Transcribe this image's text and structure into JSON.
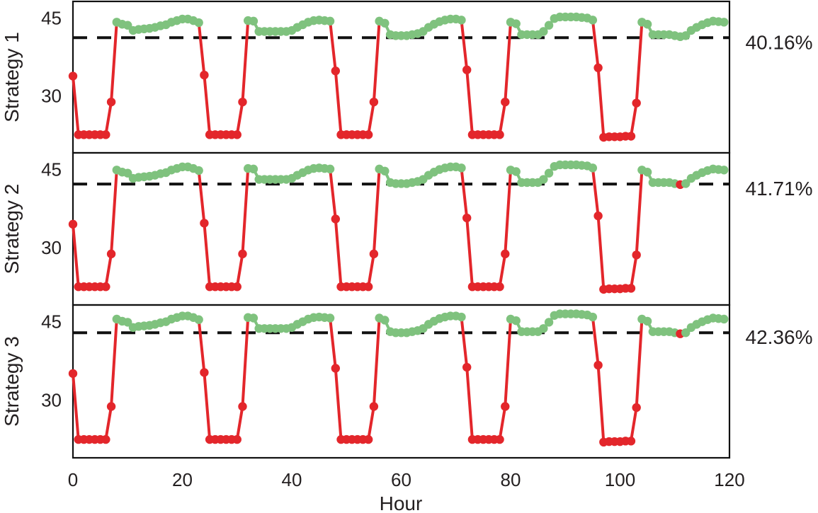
{
  "chart_data": {
    "type": "line",
    "xlabel": "Hour",
    "xlim": [
      0,
      120
    ],
    "x_ticks": [
      0,
      20,
      40,
      60,
      80,
      100,
      120
    ],
    "ylim": [
      19,
      48.2
    ],
    "y_ticks": [
      30,
      45
    ],
    "color_above": "#7fc27e",
    "color_below": "#e3262b",
    "threshold_color": "#111111",
    "panels": [
      {
        "ylabel": "Strategy 1",
        "threshold": 41.2,
        "annotation": "40.16%",
        "offset": 0
      },
      {
        "ylabel": "Strategy 2",
        "threshold": 42.2,
        "annotation": "41.71%",
        "offset": 0.7
      },
      {
        "ylabel": "Strategy 3",
        "threshold": 42.9,
        "annotation": "42.36%",
        "offset": 1.3
      }
    ],
    "series": [
      [
        0,
        33.8
      ],
      [
        1,
        22.5
      ],
      [
        2,
        22.5
      ],
      [
        3,
        22.5
      ],
      [
        4,
        22.5
      ],
      [
        5,
        22.5
      ],
      [
        6,
        22.5
      ],
      [
        7,
        28.8
      ],
      [
        8,
        44.2
      ],
      [
        9,
        43.8
      ],
      [
        10,
        43.6
      ],
      [
        11,
        42.6
      ],
      [
        12,
        42.8
      ],
      [
        13,
        42.9
      ],
      [
        14,
        43.0
      ],
      [
        15,
        43.2
      ],
      [
        16,
        43.5
      ],
      [
        17,
        43.7
      ],
      [
        18,
        44.2
      ],
      [
        19,
        44.5
      ],
      [
        20,
        44.8
      ],
      [
        21,
        44.8
      ],
      [
        22,
        44.5
      ],
      [
        23,
        44.1
      ],
      [
        24,
        34.0
      ],
      [
        25,
        22.5
      ],
      [
        26,
        22.5
      ],
      [
        27,
        22.5
      ],
      [
        28,
        22.5
      ],
      [
        29,
        22.5
      ],
      [
        30,
        22.5
      ],
      [
        31,
        28.8
      ],
      [
        32,
        44.5
      ],
      [
        33,
        44.4
      ],
      [
        34,
        42.4
      ],
      [
        35,
        42.4
      ],
      [
        36,
        42.4
      ],
      [
        37,
        42.4
      ],
      [
        38,
        42.4
      ],
      [
        39,
        42.4
      ],
      [
        40,
        42.6
      ],
      [
        41,
        43.2
      ],
      [
        42,
        43.7
      ],
      [
        43,
        44.2
      ],
      [
        44,
        44.5
      ],
      [
        45,
        44.6
      ],
      [
        46,
        44.5
      ],
      [
        47,
        44.4
      ],
      [
        48,
        34.8
      ],
      [
        49,
        22.5
      ],
      [
        50,
        22.5
      ],
      [
        51,
        22.5
      ],
      [
        52,
        22.5
      ],
      [
        53,
        22.5
      ],
      [
        54,
        22.5
      ],
      [
        55,
        28.8
      ],
      [
        56,
        44.4
      ],
      [
        57,
        44.0
      ],
      [
        58,
        41.8
      ],
      [
        59,
        41.6
      ],
      [
        60,
        41.6
      ],
      [
        61,
        41.6
      ],
      [
        62,
        41.8
      ],
      [
        63,
        42.0
      ],
      [
        64,
        42.4
      ],
      [
        65,
        43.2
      ],
      [
        66,
        43.8
      ],
      [
        67,
        44.3
      ],
      [
        68,
        44.6
      ],
      [
        69,
        44.8
      ],
      [
        70,
        44.8
      ],
      [
        71,
        44.6
      ],
      [
        72,
        35.0
      ],
      [
        73,
        22.5
      ],
      [
        74,
        22.5
      ],
      [
        75,
        22.5
      ],
      [
        76,
        22.5
      ],
      [
        77,
        22.5
      ],
      [
        78,
        22.5
      ],
      [
        79,
        28.8
      ],
      [
        80,
        44.2
      ],
      [
        81,
        43.9
      ],
      [
        82,
        41.8
      ],
      [
        83,
        41.8
      ],
      [
        84,
        41.8
      ],
      [
        85,
        41.8
      ],
      [
        86,
        42.4
      ],
      [
        87,
        43.6
      ],
      [
        88,
        44.9
      ],
      [
        89,
        45.2
      ],
      [
        90,
        45.2
      ],
      [
        91,
        45.2
      ],
      [
        92,
        45.2
      ],
      [
        93,
        45.1
      ],
      [
        94,
        45.0
      ],
      [
        95,
        44.6
      ],
      [
        96,
        35.4
      ],
      [
        97,
        22.0
      ],
      [
        98,
        22.1
      ],
      [
        99,
        22.1
      ],
      [
        100,
        22.1
      ],
      [
        101,
        22.2
      ],
      [
        102,
        22.2
      ],
      [
        103,
        28.6
      ],
      [
        104,
        44.2
      ],
      [
        105,
        43.8
      ],
      [
        106,
        41.8
      ],
      [
        107,
        41.8
      ],
      [
        108,
        41.8
      ],
      [
        109,
        41.8
      ],
      [
        110,
        41.6
      ],
      [
        111,
        41.4
      ],
      [
        112,
        41.6
      ],
      [
        113,
        42.6
      ],
      [
        114,
        43.2
      ],
      [
        115,
        43.7
      ],
      [
        116,
        44.1
      ],
      [
        117,
        44.4
      ],
      [
        118,
        44.3
      ],
      [
        119,
        44.2
      ]
    ]
  }
}
